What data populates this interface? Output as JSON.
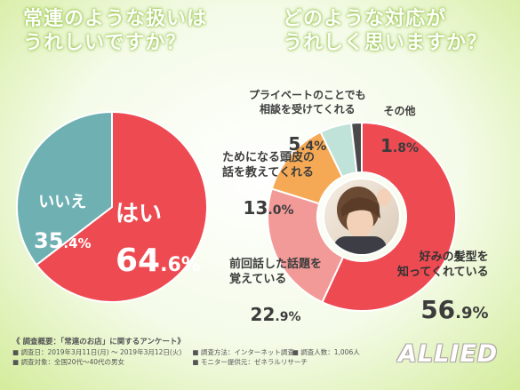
{
  "titles": {
    "left": "常連のような扱いは\nうれしいですか？",
    "right": "どのような対応が\nうれしく思いますか？"
  },
  "chart_data": [
    {
      "type": "pie",
      "categories": [
        "はい",
        "いいえ"
      ],
      "values": [
        64.6,
        35.4
      ],
      "colors": [
        "#ee4a52",
        "#6fb0b2"
      ]
    },
    {
      "type": "pie",
      "categories": [
        "好みの髪型を\n知ってくれている",
        "前回話した話題を\n覚えている",
        "ためになる頭皮の\n話を教えてくれる",
        "プライベートのことでも\n相談を受けてくれる",
        "その他"
      ],
      "values": [
        56.9,
        22.9,
        13.0,
        5.4,
        1.8
      ],
      "colors": [
        "#ee4a52",
        "#f29a98",
        "#f6a955",
        "#bfe3d8",
        "#4a4a4a"
      ]
    }
  ],
  "labels": {
    "yes": {
      "name": "はい",
      "int": "64",
      "dec": ".6",
      "pct": "%"
    },
    "no": {
      "name": "いいえ",
      "int": "35",
      "dec": ".4",
      "pct": "%"
    },
    "r1": {
      "name": "好みの髪型を\n知ってくれている",
      "int": "56",
      "dec": ".9",
      "pct": "%"
    },
    "r2": {
      "name": "前回話した話題を\n覚えている",
      "int": "22",
      "dec": ".9",
      "pct": "%"
    },
    "r3": {
      "name": "ためになる頭皮の\n話を教えてくれる",
      "int": "13",
      "dec": ".0",
      "pct": "%"
    },
    "r4": {
      "name": "プライベートのことでも\n相談を受けてくれる",
      "int": "5",
      "dec": ".4",
      "pct": "%"
    },
    "r5": {
      "name": "その他",
      "int": "1",
      "dec": ".8",
      "pct": "%"
    }
  },
  "footer": {
    "heading": "《 調査概要：「常連のお店」に関するアンケート》",
    "date": "■ 調査日：2019年3月11日(月) ～ 2019年3月12日(火)",
    "method": "■ 調査方法：インターネット調査",
    "count": "■ 調査人数：1,006人",
    "target": "■ 調査対象：全国20代～40代の男女",
    "provider": "■ モニター提供元：ゼネラルリサーチ"
  },
  "logo": {
    "text": "ALLIED",
    "accent": "#e52b2b"
  }
}
